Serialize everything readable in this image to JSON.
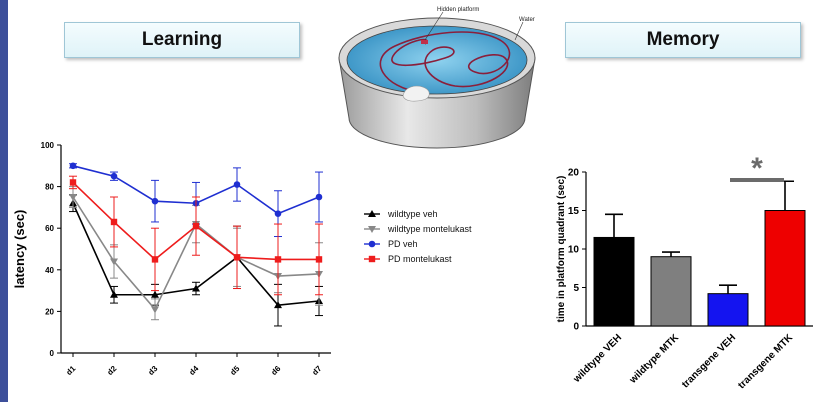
{
  "panels": {
    "learning_title": "Learning",
    "memory_title": "Memory"
  },
  "illustration": {
    "platform_label": "Hidden platform",
    "water_label": "Water"
  },
  "chart_data": [
    {
      "type": "line",
      "title": "",
      "xlabel": "",
      "ylabel": "latency (sec)",
      "categories": [
        "d1",
        "d2",
        "d3",
        "d4",
        "d5",
        "d6",
        "d7"
      ],
      "ylim": [
        0,
        100
      ],
      "yticks": [
        "0",
        "20",
        "40",
        "60",
        "80",
        "100"
      ],
      "legend_position": "right",
      "series": [
        {
          "name": "wildtype veh",
          "color": "#000000",
          "marker": "triangle-up",
          "values": [
            72,
            28,
            28,
            31,
            46,
            23,
            25
          ],
          "errors": [
            4,
            4,
            5,
            3,
            15,
            10,
            7
          ]
        },
        {
          "name": "wildtype montelukast",
          "color": "#888888",
          "marker": "triangle-down",
          "values": [
            75,
            44,
            21,
            62,
            46,
            37,
            38
          ],
          "errors": [
            5,
            8,
            5,
            9,
            14,
            8,
            15
          ]
        },
        {
          "name": "PD veh",
          "color": "#1f2fd1",
          "marker": "circle",
          "values": [
            90,
            85,
            73,
            72,
            81,
            67,
            75
          ],
          "errors": [
            1,
            2,
            10,
            10,
            8,
            11,
            12
          ]
        },
        {
          "name": "PD montelukast",
          "color": "#ee1c1c",
          "marker": "square",
          "values": [
            82,
            63,
            45,
            61,
            46,
            45,
            45
          ],
          "errors": [
            3,
            12,
            15,
            14,
            15,
            17,
            17
          ]
        }
      ]
    },
    {
      "type": "bar",
      "title": "",
      "xlabel": "",
      "ylabel": "time in platform quadrant (sec)",
      "categories": [
        "wildtype VEH",
        "wildtype MTK",
        "transgene VEH",
        "transgene MTK"
      ],
      "values": [
        11.5,
        9.0,
        4.2,
        15.0
      ],
      "errors": [
        3.0,
        0.6,
        1.1,
        3.8
      ],
      "colors": [
        "#000000",
        "#7f7f7f",
        "#1414f0",
        "#ee0000"
      ],
      "ylim": [
        0,
        20
      ],
      "yticks": [
        "0",
        "5",
        "10",
        "15",
        "20"
      ],
      "annotation": "*"
    }
  ]
}
